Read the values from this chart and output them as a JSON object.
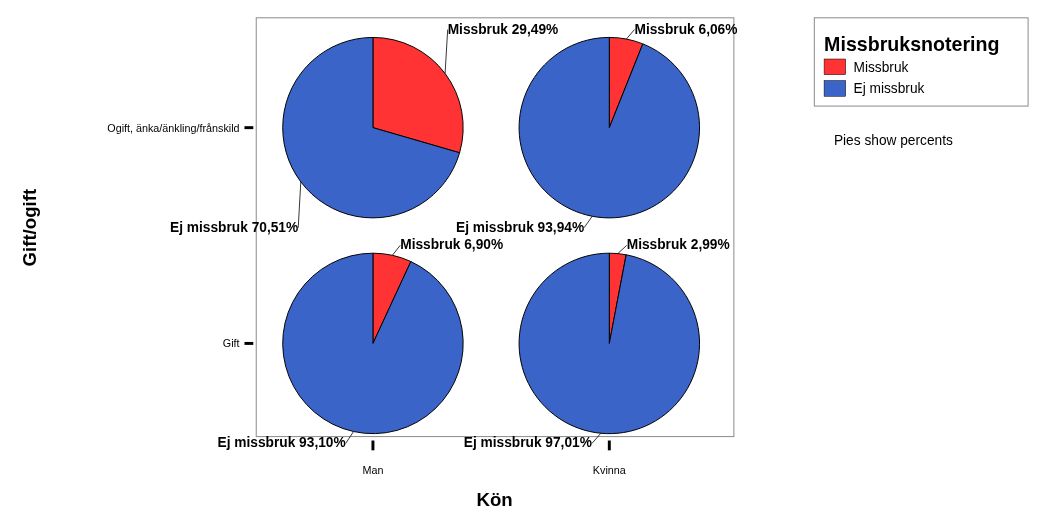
{
  "chart_data": [
    {
      "type": "pie",
      "ylabel": "Ogift, änka/änkling/frånskild",
      "categories": [
        "Missbruk",
        "Ej missbruk"
      ],
      "values": [
        29.49,
        70.51
      ],
      "value_labels": [
        "29,49%",
        "70,51%"
      ],
      "colors": [
        "#ff3333",
        "#3a64c8"
      ],
      "legend": "top right",
      "legend_title": "Missbruksnotering",
      "annotations": [
        "Kön",
        "Gift/ogift",
        "Pies show percents"
      ]
    },
    {
      "type": "pie",
      "categories": [
        "Missbruk",
        "Ej missbruk"
      ],
      "values": [
        6.06,
        93.94
      ],
      "value_labels": [
        "6,06%",
        "93,94%"
      ],
      "colors": [
        "#ff3333",
        "#3a64c8"
      ]
    },
    {
      "type": "pie",
      "ylabel": "Gift",
      "xlabel": "Man",
      "categories": [
        "Missbruk",
        "Ej missbruk"
      ],
      "values": [
        6.9,
        93.1
      ],
      "value_labels": [
        "6,90%",
        "93,10%"
      ],
      "colors": [
        "#ff3333",
        "#3a64c8"
      ]
    },
    {
      "type": "pie",
      "xlabel": "Kvinna",
      "categories": [
        "Missbruk",
        "Ej missbruk"
      ],
      "values": [
        2.99,
        97.01
      ],
      "value_labels": [
        "2,99%",
        "97,01%"
      ],
      "colors": [
        "#ff3333",
        "#3a64c8"
      ]
    }
  ]
}
